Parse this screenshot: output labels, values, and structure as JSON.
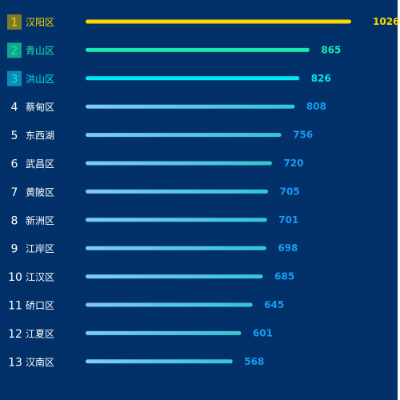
{
  "chart_data": {
    "type": "bar",
    "orientation": "horizontal",
    "categories": [
      "汉阳区",
      "青山区",
      "洪山区",
      "蔡甸区",
      "东西湖",
      "武昌区",
      "黄陂区",
      "新洲区",
      "江岸区",
      "江汉区",
      "硚口区",
      "江夏区",
      "汉南区"
    ],
    "ranks": [
      "1",
      "2",
      "3",
      "4",
      "5",
      "6",
      "7",
      "8",
      "9",
      "10",
      "11",
      "12",
      "13"
    ],
    "values": [
      1026,
      865,
      826,
      808,
      756,
      720,
      705,
      701,
      698,
      685,
      645,
      601,
      568
    ],
    "value_labels": [
      "1026",
      "865",
      "826",
      "808",
      "756",
      "720",
      "705",
      "701",
      "698",
      "685",
      "645",
      "601",
      "568"
    ],
    "xlim": [
      0,
      1026
    ],
    "grid": false,
    "legend": "none",
    "colors": {
      "background": "#013168",
      "rank1_badge": "#7f7a2a",
      "rank1_text": "#ffd700",
      "rank1_bar": "#ffd700",
      "rank2_badge": "#0fa88f",
      "rank2_text": "#1be9b3",
      "rank2_bar": "#1be9b3",
      "rank3_badge": "#0d8bb5",
      "rank3_text": "#00e8f5",
      "rank3_bar": "#00e8f5",
      "other_text": "#ffffff",
      "other_value": "#1a9cf2",
      "other_bar_start": "#80c8ff",
      "other_bar_end": "#34c6d2"
    }
  }
}
